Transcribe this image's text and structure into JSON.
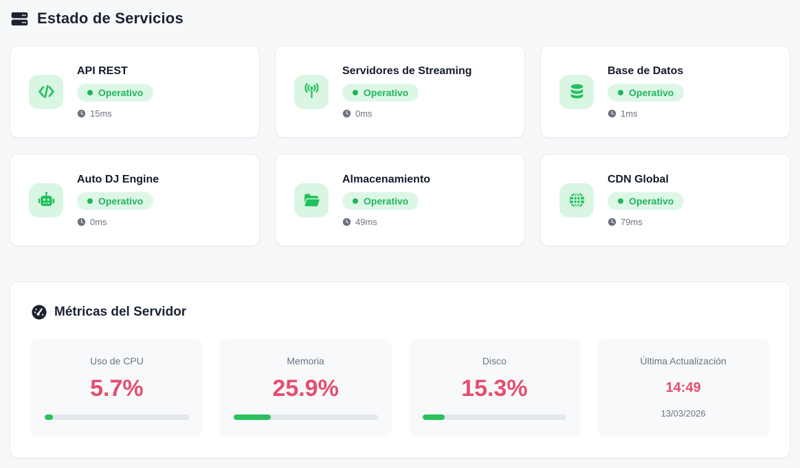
{
  "header": {
    "title": "Estado de Servicios",
    "icon": "server-stack-icon"
  },
  "services": [
    {
      "name": "API REST",
      "status": "Operativo",
      "latency": "15ms",
      "icon": "code-icon"
    },
    {
      "name": "Servidores de Streaming",
      "status": "Operativo",
      "latency": "0ms",
      "icon": "broadcast-icon"
    },
    {
      "name": "Base de Datos",
      "status": "Operativo",
      "latency": "1ms",
      "icon": "database-icon"
    },
    {
      "name": "Auto DJ Engine",
      "status": "Operativo",
      "latency": "0ms",
      "icon": "robot-icon"
    },
    {
      "name": "Almacenamiento",
      "status": "Operativo",
      "latency": "49ms",
      "icon": "folder-open-icon"
    },
    {
      "name": "CDN Global",
      "status": "Operativo",
      "latency": "79ms",
      "icon": "globe-icon"
    }
  ],
  "metrics_panel": {
    "title": "Métricas del Servidor",
    "icon": "gauge-icon",
    "metrics": [
      {
        "label": "Uso de CPU",
        "value": "5.7%",
        "percent": 5.7
      },
      {
        "label": "Memoria",
        "value": "25.9%",
        "percent": 25.9
      },
      {
        "label": "Disco",
        "value": "15.3%",
        "percent": 15.3
      }
    ],
    "last_update": {
      "label": "Última Actualización",
      "time": "14:49",
      "date": "13/03/2026"
    }
  },
  "colors": {
    "accent_green": "#22c05e",
    "green_tile_bg": "#d9f6e2",
    "badge_bg": "#ddf7e7",
    "badge_text": "#21b45c",
    "rose": "#e64d6e",
    "heading": "#1b2332",
    "muted": "#6b7280",
    "page_bg": "#f7f8fa",
    "track": "#e3e6eb"
  }
}
